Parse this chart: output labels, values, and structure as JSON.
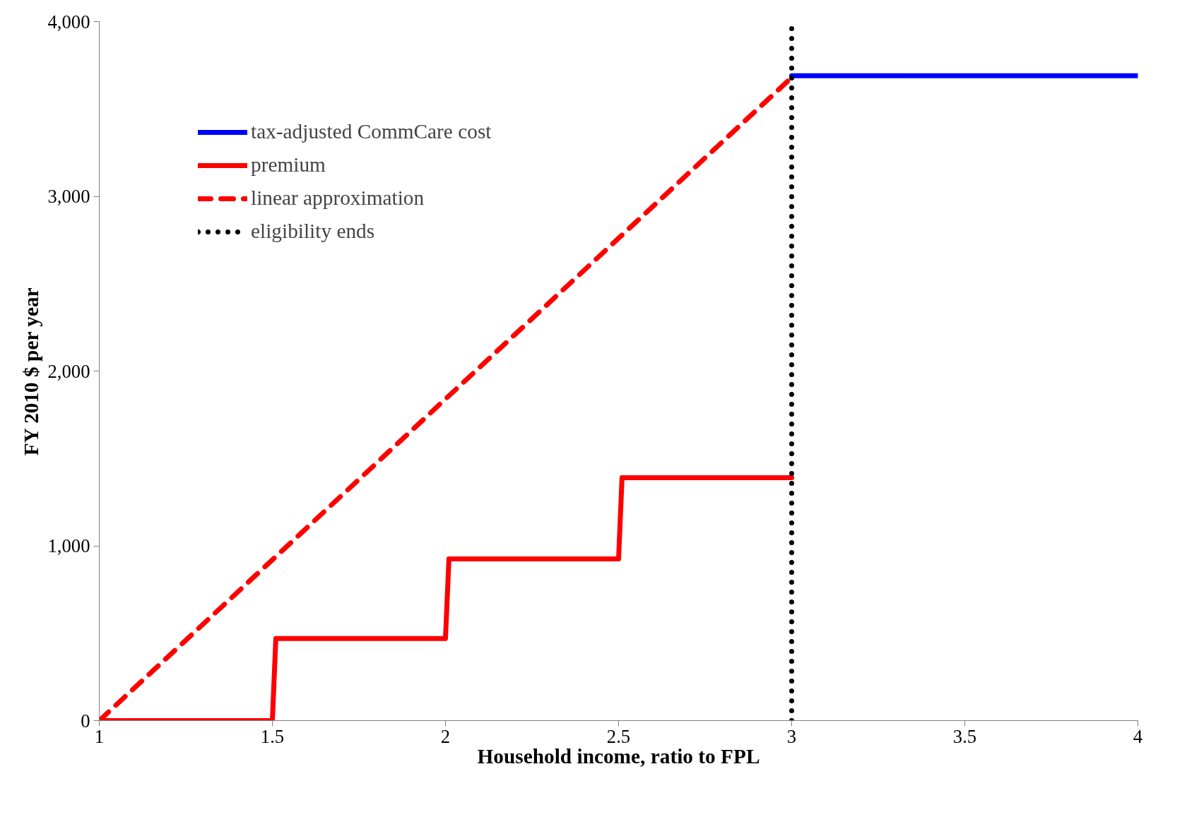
{
  "chart_data": {
    "type": "line",
    "xlabel": "Household income, ratio to FPL",
    "ylabel": "FY 2010 $ per year",
    "xlim": [
      1,
      4
    ],
    "xticks": [
      1,
      1.5,
      2,
      2.5,
      3,
      3.5,
      4
    ],
    "ylim": [
      0,
      4000
    ],
    "yticks": [
      {
        "value": 0,
        "label": "0"
      },
      {
        "value": 1000,
        "label": "1,000"
      },
      {
        "value": 2000,
        "label": "2,000"
      },
      {
        "value": 3000,
        "label": "3,000"
      },
      {
        "value": 4000,
        "label": "4,000"
      }
    ],
    "series": [
      {
        "name": "tax-adjusted CommCare cost",
        "color": "#0000ff",
        "x": [
          3,
          4
        ],
        "values": [
          3690,
          3690
        ]
      },
      {
        "name": "premium",
        "color": "#ff0000",
        "x": [
          1,
          1.5,
          1.51,
          2,
          2.01,
          2.5,
          2.51,
          3
        ],
        "values": [
          0,
          0,
          470,
          470,
          925,
          925,
          1390,
          1390
        ]
      },
      {
        "name": "linear approximation",
        "color": "#ff0000",
        "line_style": "dashed",
        "x": [
          1,
          3
        ],
        "values": [
          0,
          3680
        ]
      },
      {
        "name": "eligibility ends",
        "color": "#000000",
        "line_style": "dotted",
        "x": [
          3,
          3
        ],
        "values": [
          0,
          3980
        ]
      }
    ],
    "grid": false,
    "legend": "top left"
  }
}
